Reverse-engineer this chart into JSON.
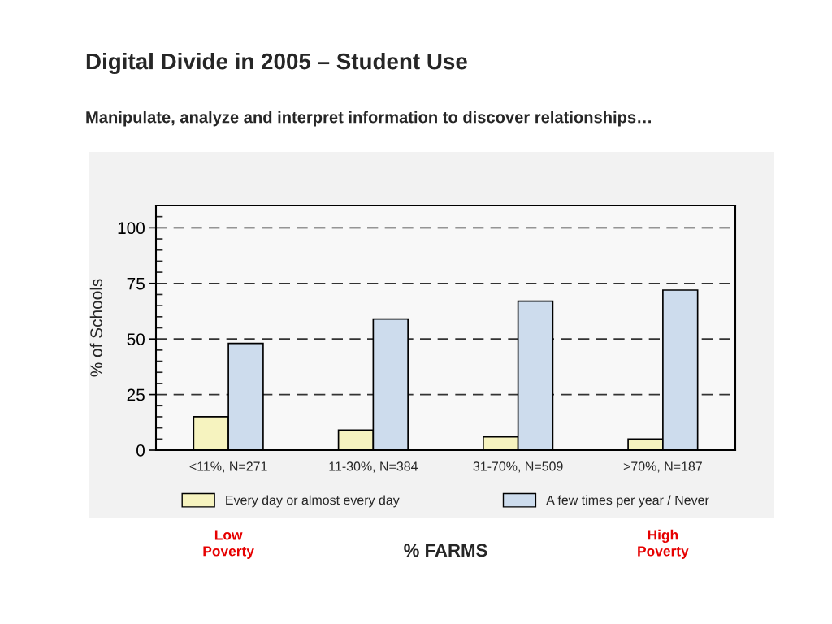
{
  "chart_data": {
    "type": "bar",
    "title": "Digital Divide in 2005 – Student Use",
    "subtitle": "Manipulate, analyze and interpret information to discover relationships…",
    "ylabel": "% of Schools",
    "xlabel": "% FARMS",
    "categories": [
      "<11%, N=271",
      "11-30%, N=384",
      "31-70%, N=509",
      ">70%, N=187"
    ],
    "series": [
      {
        "name": "Every day or almost every day",
        "color": "#f6f3bf",
        "values": [
          15,
          9,
          6,
          5
        ]
      },
      {
        "name": "A few times per year / Never",
        "color": "#cddced",
        "values": [
          48,
          59,
          67,
          72
        ]
      }
    ],
    "ylim": [
      0,
      110
    ],
    "yticks": [
      0,
      25,
      50,
      75,
      100
    ],
    "grid": "y",
    "legend": "bottom",
    "annotations": [
      "Low Poverty",
      "High Poverty"
    ]
  }
}
